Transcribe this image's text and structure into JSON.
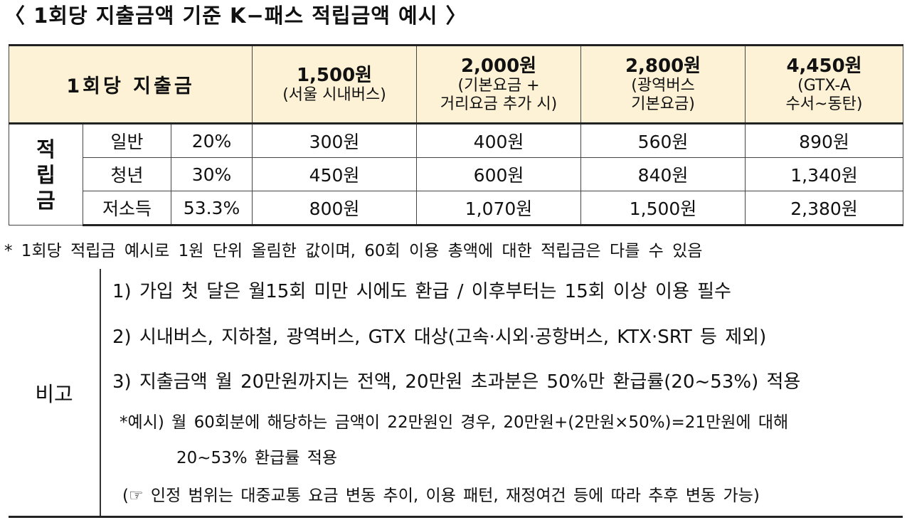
{
  "title": "〈 1회당 지출금액 기준 K−패스 적립금액 예시 〉",
  "table": {
    "header_label": "1회당 지출금",
    "columns": [
      {
        "amount": "1,500원",
        "desc": [
          "(서울 시내버스)"
        ]
      },
      {
        "amount": "2,000원",
        "desc": [
          "(기본요금 +",
          "거리요금 추가 시)"
        ]
      },
      {
        "amount": "2,800원",
        "desc": [
          "(광역버스",
          "기본요금)"
        ]
      },
      {
        "amount": "4,450원",
        "desc": [
          "(GTX-A",
          "수서~동탄)"
        ]
      }
    ],
    "group_label": [
      "적",
      "립",
      "금"
    ],
    "rows": [
      {
        "type": "일반",
        "rate": "20%",
        "values": [
          "300원",
          "400원",
          "560원",
          "890원"
        ]
      },
      {
        "type": "청년",
        "rate": "30%",
        "values": [
          "450원",
          "600원",
          "840원",
          "1,340원"
        ]
      },
      {
        "type": "저소득",
        "rate": "53.3%",
        "values": [
          "800원",
          "1,070원",
          "1,500원",
          "2,380원"
        ]
      }
    ]
  },
  "note": "* 1회당 적립금 예시로 1원 단위 올림한 값이며, 60회 이용 총액에 대한 적립금은 다를 수 있음",
  "remark": {
    "label": "비고",
    "lines": [
      "1) 가입 첫 달은 월15회 미만 시에도 환급 / 이후부터는 15회 이상 이용 필수",
      "2) 시내버스, 지하철, 광역버스, GTX 대상(고속·시외·공항버스, KTX·SRT 등 제외)",
      "3) 지출금액 월 20만원까지는 전액, 20만원 초과분은 50%만 환급률(20~53%) 적용",
      "*예시) 월 60회분에 해당하는 금액이 22만원인 경우, 20만원+(2만원×50%)=21만원에 대해",
      "20~53% 환급률 적용",
      "(☞ 인정 범위는 대중교통 요금 변동 추이, 이용 패턴, 재정여건 등에 따라 추후 변동 가능)"
    ]
  }
}
